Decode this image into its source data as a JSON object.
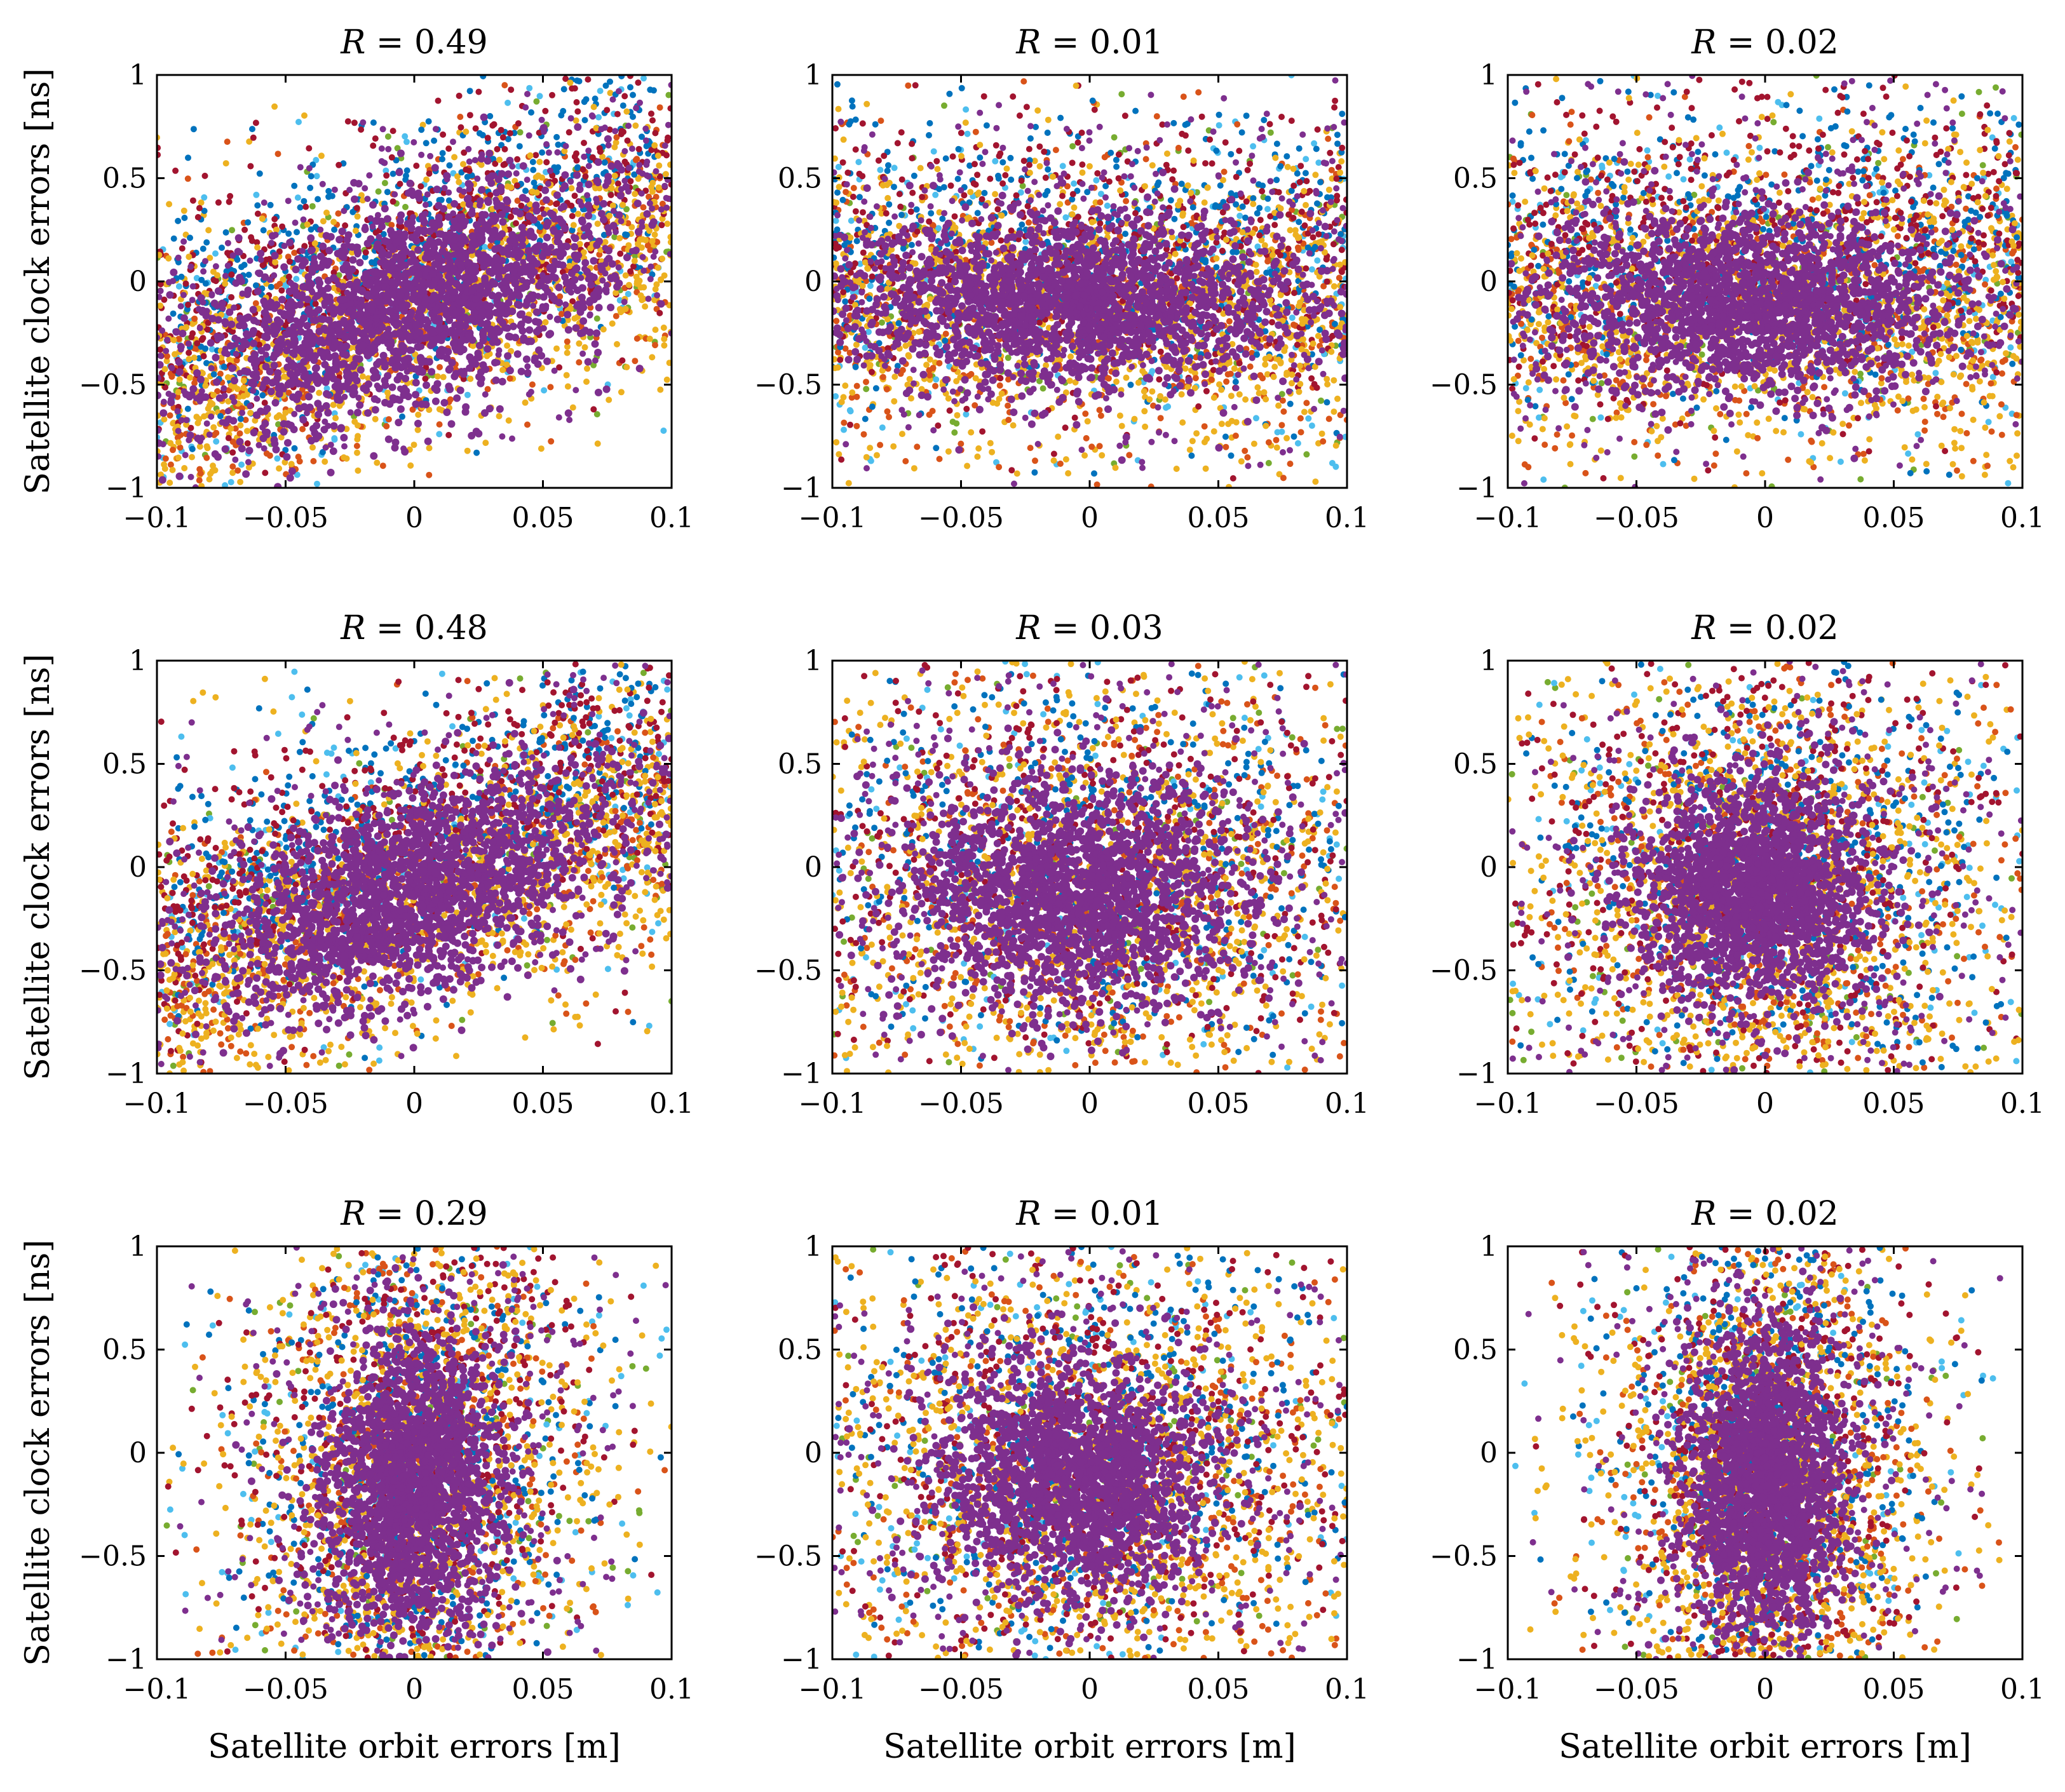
{
  "figure": {
    "description_label": "Satellite orbit vs clock error scatter grid"
  },
  "palette": {
    "purple": "#7E2F8E",
    "blue": "#0072BD",
    "orange": "#D95319",
    "yellow": "#EDB120",
    "darkred": "#A2142F",
    "lightblue": "#4DBEEE",
    "green": "#77AC30"
  },
  "chart_data": [
    {
      "type": "scatter",
      "row": 0,
      "col": 0,
      "title_var": "R",
      "title_value": "= 0.49",
      "xlabel": "",
      "ylabel": "Satellite clock errors [ns]",
      "xlim": [
        -0.1,
        0.1
      ],
      "ylim": [
        -1,
        1
      ],
      "x_ticks": [
        "−0.1",
        "−0.05",
        "0",
        "0.05",
        "0.1"
      ],
      "y_ticks": [
        "1",
        "0.5",
        "0",
        "−0.5",
        "−1"
      ],
      "R": 0.49,
      "pattern": "tilted",
      "slope": 6.0,
      "core_width": [
        0.05,
        0.45
      ],
      "series_names": [
        "purple",
        "blue",
        "orange",
        "yellow",
        "darkred",
        "lightblue",
        "green"
      ]
    },
    {
      "type": "scatter",
      "row": 0,
      "col": 1,
      "title_var": "R",
      "title_value": "= 0.01",
      "xlabel": "",
      "ylabel": "",
      "xlim": [
        -0.1,
        0.1
      ],
      "ylim": [
        -1,
        1
      ],
      "x_ticks": [
        "−0.1",
        "−0.05",
        "0",
        "0.05",
        "0.1"
      ],
      "y_ticks": [
        "1",
        "0.5",
        "0",
        "−0.5",
        "−1"
      ],
      "R": 0.01,
      "pattern": "wide-band",
      "slope": 0.0,
      "core_width": [
        0.06,
        0.35
      ],
      "series_names": [
        "purple",
        "blue",
        "orange",
        "yellow",
        "darkred",
        "lightblue",
        "green"
      ]
    },
    {
      "type": "scatter",
      "row": 0,
      "col": 2,
      "title_var": "R",
      "title_value": "= 0.02",
      "xlabel": "",
      "ylabel": "",
      "xlim": [
        -0.1,
        0.1
      ],
      "ylim": [
        -1,
        1
      ],
      "x_ticks": [
        "−0.1",
        "−0.05",
        "0",
        "0.05",
        "0.1"
      ],
      "y_ticks": [
        "1",
        "0.5",
        "0",
        "−0.5",
        "−1"
      ],
      "R": 0.02,
      "pattern": "wide-band",
      "slope": 0.0,
      "core_width": [
        0.055,
        0.38
      ],
      "series_names": [
        "purple",
        "blue",
        "orange",
        "yellow",
        "darkred",
        "lightblue",
        "green"
      ]
    },
    {
      "type": "scatter",
      "row": 1,
      "col": 0,
      "title_var": "R",
      "title_value": "= 0.48",
      "xlabel": "",
      "ylabel": "Satellite clock errors [ns]",
      "xlim": [
        -0.1,
        0.1
      ],
      "ylim": [
        -1,
        1
      ],
      "x_ticks": [
        "−0.1",
        "−0.05",
        "0",
        "0.05",
        "0.1"
      ],
      "y_ticks": [
        "1",
        "0.5",
        "0",
        "−0.5",
        "−1"
      ],
      "R": 0.48,
      "pattern": "tilted",
      "slope": 5.5,
      "core_width": [
        0.05,
        0.45
      ],
      "series_names": [
        "purple",
        "blue",
        "orange",
        "yellow",
        "darkred",
        "lightblue",
        "green"
      ]
    },
    {
      "type": "scatter",
      "row": 1,
      "col": 1,
      "title_var": "R",
      "title_value": "= 0.03",
      "xlabel": "",
      "ylabel": "",
      "xlim": [
        -0.1,
        0.1
      ],
      "ylim": [
        -1,
        1
      ],
      "x_ticks": [
        "−0.1",
        "−0.05",
        "0",
        "0.05",
        "0.1"
      ],
      "y_ticks": [
        "1",
        "0.5",
        "0",
        "−0.5",
        "−1"
      ],
      "R": 0.03,
      "pattern": "diamond",
      "slope": 0.0,
      "core_width": [
        0.05,
        0.5
      ],
      "series_names": [
        "purple",
        "blue",
        "orange",
        "yellow",
        "darkred",
        "lightblue",
        "green"
      ]
    },
    {
      "type": "scatter",
      "row": 1,
      "col": 2,
      "title_var": "R",
      "title_value": "= 0.02",
      "xlabel": "",
      "ylabel": "",
      "xlim": [
        -0.1,
        0.1
      ],
      "ylim": [
        -1,
        1
      ],
      "x_ticks": [
        "−0.1",
        "−0.05",
        "0",
        "0.05",
        "0.1"
      ],
      "y_ticks": [
        "1",
        "0.5",
        "0",
        "−0.5",
        "−1"
      ],
      "R": 0.02,
      "pattern": "diamond",
      "slope": 0.0,
      "core_width": [
        0.035,
        0.5
      ],
      "series_names": [
        "purple",
        "blue",
        "orange",
        "yellow",
        "darkred",
        "lightblue",
        "green"
      ]
    },
    {
      "type": "scatter",
      "row": 2,
      "col": 0,
      "title_var": "R",
      "title_value": "= 0.29",
      "xlabel": "Satellite orbit errors [m]",
      "ylabel": "Satellite clock errors [ns]",
      "xlim": [
        -0.1,
        0.1
      ],
      "ylim": [
        -1,
        1
      ],
      "x_ticks": [
        "−0.1",
        "−0.05",
        "0",
        "0.05",
        "0.1"
      ],
      "y_ticks": [
        "1",
        "0.5",
        "0",
        "−0.5",
        "−1"
      ],
      "R": 0.29,
      "pattern": "narrow",
      "slope": 3.0,
      "core_width": [
        0.025,
        0.6
      ],
      "series_names": [
        "purple",
        "blue",
        "orange",
        "yellow",
        "darkred",
        "lightblue",
        "green"
      ]
    },
    {
      "type": "scatter",
      "row": 2,
      "col": 1,
      "title_var": "R",
      "title_value": "= 0.01",
      "xlabel": "Satellite orbit errors [m]",
      "ylabel": "",
      "xlim": [
        -0.1,
        0.1
      ],
      "ylim": [
        -1,
        1
      ],
      "x_ticks": [
        "−0.1",
        "−0.05",
        "0",
        "0.05",
        "0.1"
      ],
      "y_ticks": [
        "1",
        "0.5",
        "0",
        "−0.5",
        "−1"
      ],
      "R": 0.01,
      "pattern": "diamond",
      "slope": 0.0,
      "core_width": [
        0.04,
        0.5
      ],
      "series_names": [
        "purple",
        "blue",
        "orange",
        "yellow",
        "darkred",
        "lightblue",
        "green"
      ]
    },
    {
      "type": "scatter",
      "row": 2,
      "col": 2,
      "title_var": "R",
      "title_value": "= 0.02",
      "xlabel": "Satellite orbit errors [m]",
      "ylabel": "",
      "xlim": [
        -0.1,
        0.1
      ],
      "ylim": [
        -1,
        1
      ],
      "x_ticks": [
        "−0.1",
        "−0.05",
        "0",
        "0.05",
        "0.1"
      ],
      "y_ticks": [
        "1",
        "0.5",
        "0",
        "−0.5",
        "−1"
      ],
      "R": 0.02,
      "pattern": "narrow",
      "slope": 0.0,
      "core_width": [
        0.022,
        0.6
      ],
      "series_names": [
        "purple",
        "blue",
        "orange",
        "yellow",
        "darkred",
        "lightblue",
        "green"
      ]
    }
  ]
}
